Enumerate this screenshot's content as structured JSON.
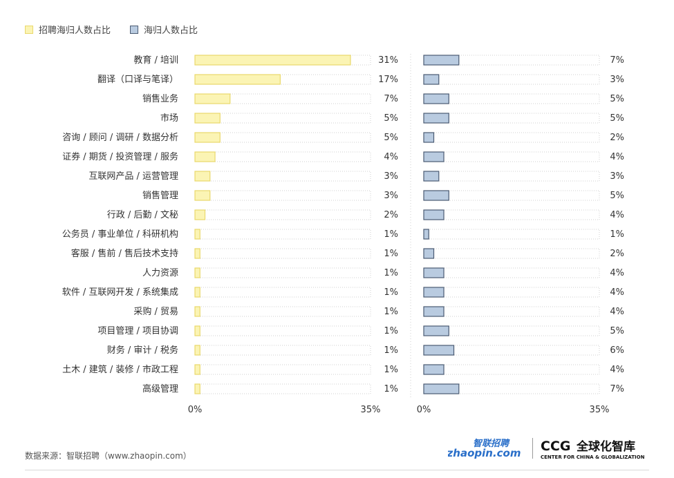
{
  "legend": {
    "series1": "招聘海归人数占比",
    "series2": "海归人数占比"
  },
  "colors": {
    "series1_fill": "#fbf4b4",
    "series1_stroke": "#e9d86b",
    "series2_fill": "#b9cbe0",
    "series2_stroke": "#4a5a72",
    "track_dot": "#cfcfcf"
  },
  "chart_data": {
    "type": "bar",
    "orientation": "horizontal",
    "categories": [
      "教育 / 培训",
      "翻译（口译与笔译）",
      "销售业务",
      "市场",
      "咨询 / 顾问 / 调研 / 数据分析",
      "证券 / 期货 / 投资管理 / 服务",
      "互联网产品 / 运营管理",
      "销售管理",
      "行政 / 后勤 / 文秘",
      "公务员 / 事业单位 / 科研机构",
      "客服 / 售前 / 售后技术支持",
      "人力资源",
      "软件 / 互联网开发 / 系统集成",
      "采购 / 贸易",
      "项目管理 / 项目协调",
      "财务 / 审计 / 税务",
      "土木 / 建筑 / 装修 / 市政工程",
      "高级管理"
    ],
    "series": [
      {
        "name": "招聘海归人数占比",
        "values": [
          31,
          17,
          7,
          5,
          5,
          4,
          3,
          3,
          2,
          1,
          1,
          1,
          1,
          1,
          1,
          1,
          1,
          1
        ],
        "labels": [
          "31%",
          "17%",
          "7%",
          "5%",
          "5%",
          "4%",
          "3%",
          "3%",
          "2%",
          "1%",
          "1%",
          "1%",
          "1%",
          "1%",
          "1%",
          "1%",
          "1%",
          "1%"
        ]
      },
      {
        "name": "海归人数占比",
        "values": [
          7,
          3,
          5,
          5,
          2,
          4,
          3,
          5,
          4,
          1,
          2,
          4,
          4,
          4,
          5,
          6,
          4,
          7
        ],
        "labels": [
          "7%",
          "3%",
          "5%",
          "5%",
          "2%",
          "4%",
          "3%",
          "5%",
          "4%",
          "1%",
          "2%",
          "4%",
          "4%",
          "4%",
          "5%",
          "6%",
          "4%",
          "7%"
        ]
      }
    ],
    "xlim": [
      0,
      35
    ],
    "xtick_labels": [
      "0%",
      "35%"
    ]
  },
  "footer": {
    "source": "数据来源：智联招聘（www.zhaopin.com）",
    "logo_zhaopin_top": "智联招聘",
    "logo_zhaopin_bottom": "zhaopin.com",
    "logo_ccg_main": "CCG",
    "logo_ccg_cn": "全球化智库",
    "logo_ccg_en": "CENTER FOR CHINA & GLOBALIZATION"
  }
}
